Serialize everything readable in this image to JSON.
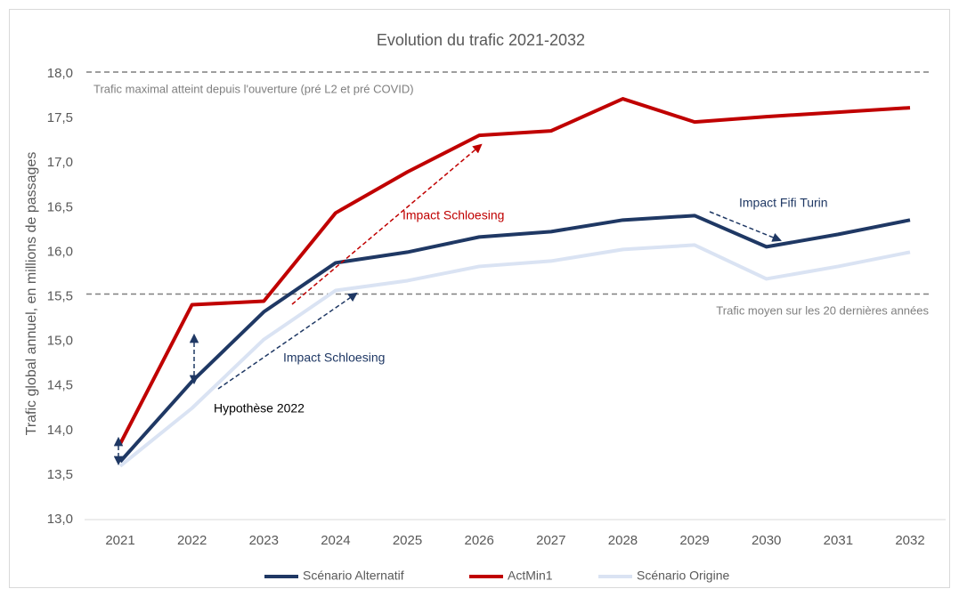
{
  "chart_data": {
    "type": "line",
    "title": "Evolution du trafic 2021-2032",
    "ylabel": "Trafic global annuel, en millions de passages",
    "categories": [
      "2021",
      "2022",
      "2023",
      "2024",
      "2025",
      "2026",
      "2027",
      "2028",
      "2029",
      "2030",
      "2031",
      "2032"
    ],
    "series": [
      {
        "name": "Scénario Alternatif",
        "color": "#1f3864",
        "values": [
          13.65,
          14.55,
          15.33,
          15.88,
          16.0,
          16.17,
          16.23,
          16.36,
          16.41,
          16.06,
          16.2,
          16.36
        ]
      },
      {
        "name": "ActMin1",
        "color": "#c00000",
        "values": [
          13.85,
          15.41,
          15.45,
          16.44,
          16.9,
          17.31,
          17.36,
          17.72,
          17.46,
          17.52,
          17.57,
          17.62
        ]
      },
      {
        "name": "Scénario Origine",
        "color": "#dae3f3",
        "values": [
          13.6,
          14.25,
          15.02,
          15.57,
          15.68,
          15.84,
          15.9,
          16.03,
          16.08,
          15.7,
          15.84,
          16.0
        ]
      }
    ],
    "ylim": [
      13,
      18
    ],
    "yticks": [
      {
        "value": 13,
        "label": "13,0"
      },
      {
        "value": 13.5,
        "label": "13,5"
      },
      {
        "value": 14,
        "label": "14,0"
      },
      {
        "value": 14.5,
        "label": "14,5"
      },
      {
        "value": 15,
        "label": "15,0"
      },
      {
        "value": 15.5,
        "label": "15,5"
      },
      {
        "value": 16,
        "label": "16,0"
      },
      {
        "value": 16.5,
        "label": "16,5"
      },
      {
        "value": 17,
        "label": "17,0"
      },
      {
        "value": 17.5,
        "label": "17,5"
      },
      {
        "value": 18,
        "label": "18,0"
      }
    ],
    "reference_lines": [
      {
        "value": 18.02,
        "label": "Trafic maximal atteint depuis l'ouverture (pré L2 et pré COVID)"
      },
      {
        "value": 15.53,
        "label": "Trafic moyen sur les 20 dernières années"
      }
    ],
    "annotations": [
      "Impact Schloesing",
      "Impact Schloesing",
      "Hypothèse 2022",
      "Impact Fifi Turin"
    ],
    "legend": "bottom"
  }
}
